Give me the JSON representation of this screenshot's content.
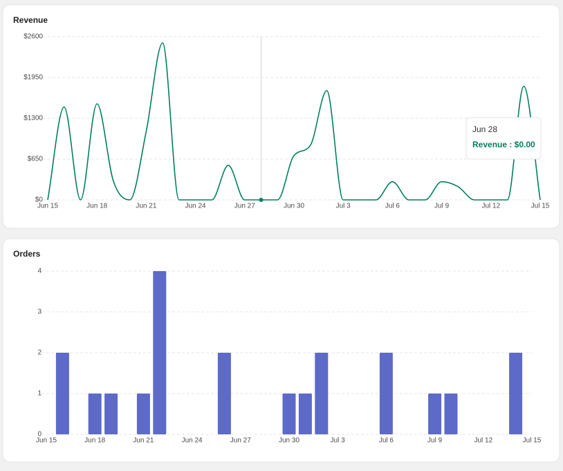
{
  "chart_data": [
    {
      "type": "line",
      "title": "Revenue",
      "categories": [
        "Jun 15",
        null,
        null,
        "Jun 18",
        null,
        null,
        "Jun 21",
        null,
        null,
        "Jun 24",
        null,
        null,
        "Jun 27",
        null,
        null,
        "Jun 30",
        null,
        null,
        "Jul 3",
        null,
        null,
        "Jul 6",
        null,
        null,
        "Jul 9",
        null,
        null,
        "Jul 12",
        null,
        null,
        "Jul 15"
      ],
      "series": [
        {
          "name": "Revenue",
          "color": "#007f5f",
          "values": [
            0,
            1480,
            0,
            1530,
            300,
            0,
            1090,
            2500,
            0,
            0,
            0,
            550,
            0,
            0,
            0,
            705,
            870,
            1740,
            0,
            0,
            0,
            290,
            0,
            0,
            290,
            210,
            0,
            0,
            0,
            1810,
            0
          ]
        }
      ],
      "ylim": [
        0,
        2600
      ],
      "yticks": [
        {
          "value": 0,
          "label": "$0"
        },
        {
          "value": 650,
          "label": "$650"
        },
        {
          "value": 1300,
          "label": "$1300"
        },
        {
          "value": 1950,
          "label": "$1950"
        },
        {
          "value": 2600,
          "label": "$2600"
        }
      ],
      "grid": true,
      "tooltip": {
        "index": 13,
        "title": "Jun 28",
        "text": "Revenue : $0.00"
      }
    },
    {
      "type": "bar",
      "title": "Orders",
      "categories": [
        "Jun 15",
        null,
        null,
        "Jun 18",
        null,
        null,
        "Jun 21",
        null,
        null,
        "Jun 24",
        null,
        null,
        "Jun 27",
        null,
        null,
        "Jun 30",
        null,
        null,
        "Jul 3",
        null,
        null,
        "Jul 6",
        null,
        null,
        "Jul 9",
        null,
        null,
        "Jul 12",
        null,
        null,
        "Jul 15"
      ],
      "series": [
        {
          "name": "Orders",
          "color": "#5e6ac8",
          "values": [
            0,
            2,
            0,
            1,
            1,
            0,
            1,
            4,
            0,
            0,
            0,
            2,
            0,
            0,
            0,
            1,
            1,
            2,
            0,
            0,
            0,
            2,
            0,
            0,
            1,
            1,
            0,
            0,
            0,
            2,
            0
          ]
        }
      ],
      "ylim": [
        0,
        4
      ],
      "yticks": [
        0,
        1,
        2,
        3,
        4
      ],
      "grid": true
    }
  ]
}
